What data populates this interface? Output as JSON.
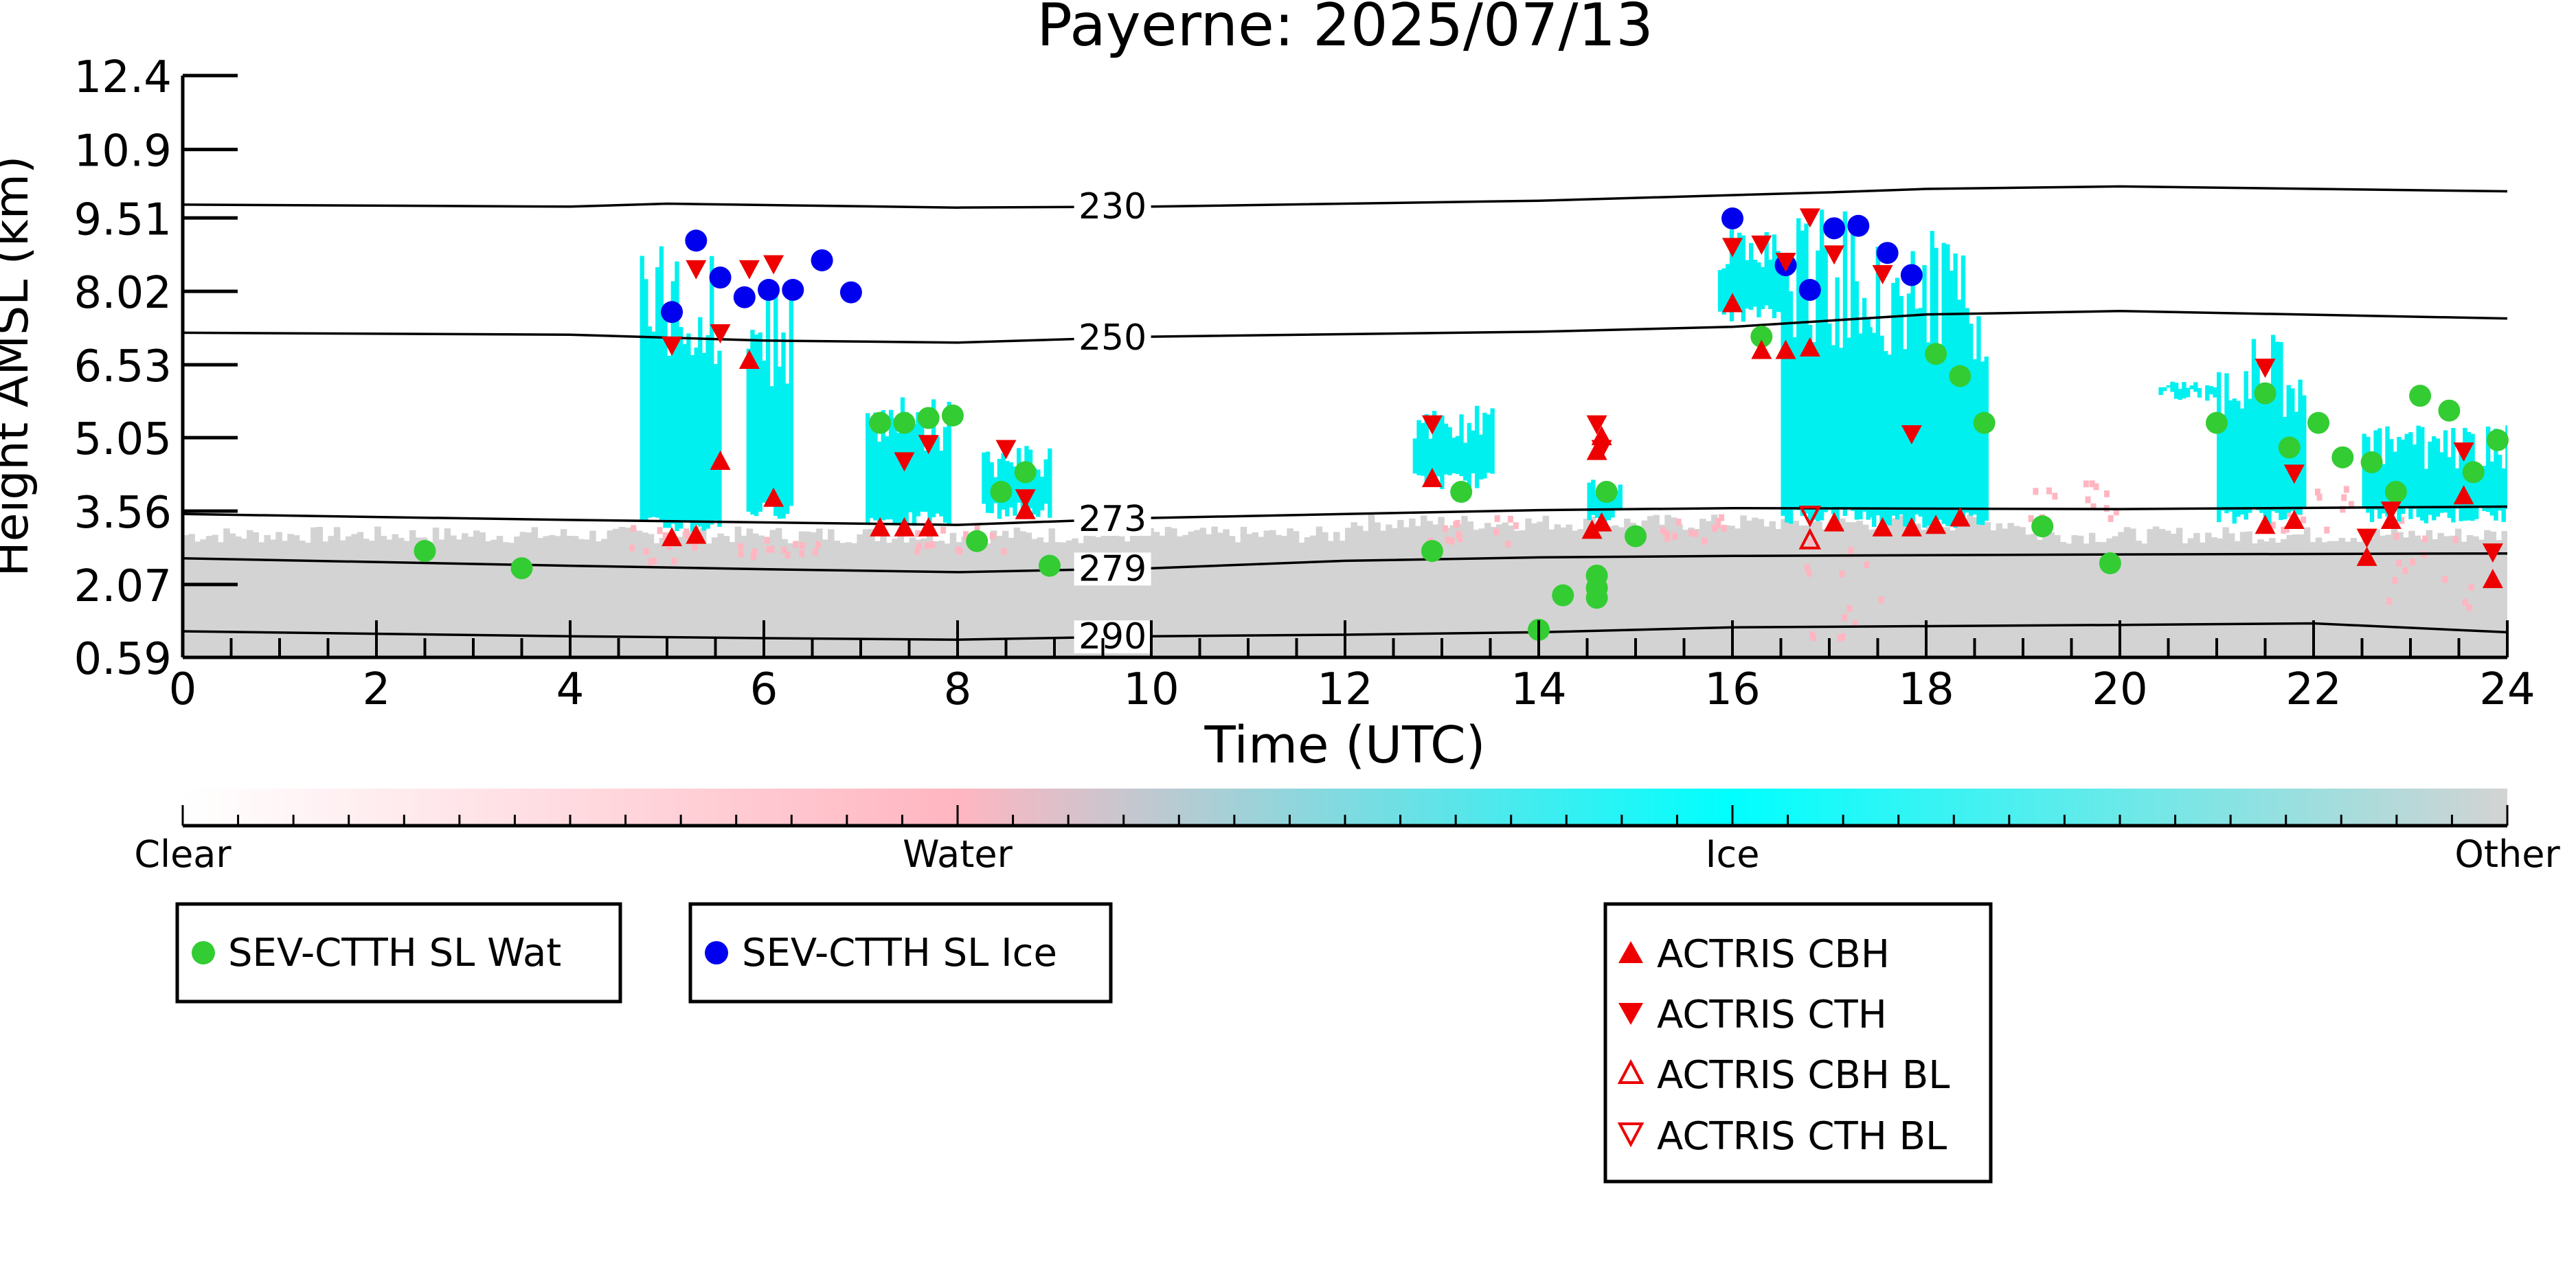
{
  "chart_data": {
    "type": "scatter",
    "title": "Payerne: 2025/07/13",
    "xlabel": "Time (UTC)",
    "ylabel": "Height AMSL (km)",
    "xlim": [
      0,
      24
    ],
    "ylim": [
      0.59,
      12.4
    ],
    "xticks": [
      0,
      2,
      4,
      6,
      8,
      10,
      12,
      14,
      16,
      18,
      20,
      22,
      24
    ],
    "xtick_labels": [
      "0",
      "2",
      "4",
      "6",
      "8",
      "10",
      "12",
      "14",
      "16",
      "18",
      "20",
      "22",
      "24"
    ],
    "yticks": [
      0.59,
      2.07,
      3.56,
      5.05,
      6.53,
      8.02,
      9.51,
      10.9,
      12.4
    ],
    "ytick_labels": [
      "0.59",
      "2.07",
      "3.56",
      "5.05",
      "6.53",
      "8.02",
      "9.51",
      "10.9",
      "12.4"
    ],
    "grid": false,
    "colorbar": {
      "labels": [
        "Clear",
        "Water",
        "Ice",
        "Other"
      ],
      "colors": [
        "#ffffff",
        "#ffb6c1",
        "#00ffff",
        "#d3d3d3"
      ]
    },
    "isotherms": [
      {
        "label": "230",
        "points": [
          [
            0,
            9.78
          ],
          [
            4,
            9.74
          ],
          [
            5,
            9.8
          ],
          [
            8,
            9.72
          ],
          [
            10,
            9.74
          ],
          [
            14,
            9.86
          ],
          [
            17,
            10.03
          ],
          [
            18,
            10.1
          ],
          [
            20,
            10.15
          ],
          [
            24,
            10.05
          ]
        ]
      },
      {
        "label": "250",
        "points": [
          [
            0,
            7.18
          ],
          [
            4,
            7.14
          ],
          [
            6,
            7.02
          ],
          [
            8,
            6.98
          ],
          [
            10,
            7.1
          ],
          [
            14,
            7.2
          ],
          [
            16,
            7.3
          ],
          [
            18,
            7.55
          ],
          [
            20,
            7.62
          ],
          [
            24,
            7.47
          ]
        ]
      },
      {
        "label": "273",
        "points": [
          [
            0,
            3.5
          ],
          [
            4,
            3.38
          ],
          [
            6,
            3.33
          ],
          [
            8,
            3.28
          ],
          [
            10,
            3.42
          ],
          [
            12,
            3.5
          ],
          [
            14,
            3.58
          ],
          [
            16,
            3.62
          ],
          [
            20,
            3.6
          ],
          [
            24,
            3.65
          ]
        ]
      },
      {
        "label": "279",
        "points": [
          [
            0,
            2.6
          ],
          [
            4,
            2.45
          ],
          [
            6,
            2.38
          ],
          [
            8,
            2.32
          ],
          [
            10,
            2.4
          ],
          [
            12,
            2.55
          ],
          [
            14,
            2.62
          ],
          [
            16,
            2.65
          ],
          [
            20,
            2.68
          ],
          [
            24,
            2.7
          ]
        ]
      },
      {
        "label": "290",
        "points": [
          [
            0,
            1.12
          ],
          [
            4,
            1.02
          ],
          [
            6,
            0.98
          ],
          [
            8,
            0.95
          ],
          [
            10,
            1.02
          ],
          [
            12,
            1.05
          ],
          [
            14,
            1.1
          ],
          [
            16,
            1.2
          ],
          [
            20,
            1.25
          ],
          [
            22,
            1.28
          ],
          [
            24,
            1.1
          ]
        ]
      }
    ],
    "series": [
      {
        "name": "SEV-CTTH SL Wat",
        "marker": "circle",
        "color": "#33cc33",
        "points": [
          [
            2.5,
            2.75
          ],
          [
            3.5,
            2.4
          ],
          [
            7.2,
            5.35
          ],
          [
            7.45,
            5.35
          ],
          [
            7.7,
            5.45
          ],
          [
            7.95,
            5.5
          ],
          [
            8.2,
            2.95
          ],
          [
            8.45,
            3.95
          ],
          [
            8.7,
            4.35
          ],
          [
            8.95,
            2.45
          ],
          [
            12.9,
            2.75
          ],
          [
            13.2,
            3.95
          ],
          [
            14.0,
            1.15
          ],
          [
            14.25,
            1.85
          ],
          [
            14.6,
            1.8
          ],
          [
            14.6,
            2.0
          ],
          [
            14.6,
            2.25
          ],
          [
            14.7,
            3.95
          ],
          [
            15.0,
            3.05
          ],
          [
            16.3,
            7.1
          ],
          [
            18.1,
            6.75
          ],
          [
            18.35,
            6.3
          ],
          [
            18.6,
            5.35
          ],
          [
            19.2,
            3.25
          ],
          [
            19.9,
            2.5
          ],
          [
            21.0,
            5.35
          ],
          [
            21.5,
            5.95
          ],
          [
            21.75,
            4.85
          ],
          [
            22.05,
            5.35
          ],
          [
            22.3,
            4.65
          ],
          [
            22.6,
            4.55
          ],
          [
            22.85,
            3.95
          ],
          [
            23.1,
            5.9
          ],
          [
            23.4,
            5.6
          ],
          [
            23.65,
            4.35
          ],
          [
            23.9,
            5.0
          ]
        ]
      },
      {
        "name": "SEV-CTTH SL Ice",
        "marker": "circle",
        "color": "#0000ee",
        "points": [
          [
            5.05,
            7.6
          ],
          [
            5.3,
            9.05
          ],
          [
            5.55,
            8.3
          ],
          [
            5.8,
            7.9
          ],
          [
            6.05,
            8.05
          ],
          [
            6.3,
            8.05
          ],
          [
            6.6,
            8.65
          ],
          [
            6.9,
            8.0
          ],
          [
            16.0,
            9.5
          ],
          [
            16.55,
            8.55
          ],
          [
            16.8,
            8.05
          ],
          [
            17.05,
            9.3
          ],
          [
            17.3,
            9.35
          ],
          [
            17.6,
            8.8
          ],
          [
            17.85,
            8.35
          ]
        ]
      },
      {
        "name": "ACTRIS CBH",
        "marker": "triangle-up",
        "color": "#ee0000",
        "points": [
          [
            5.05,
            3.0
          ],
          [
            5.3,
            3.05
          ],
          [
            5.55,
            4.55
          ],
          [
            5.85,
            6.6
          ],
          [
            6.1,
            3.8
          ],
          [
            7.2,
            3.2
          ],
          [
            7.45,
            3.2
          ],
          [
            7.7,
            3.2
          ],
          [
            8.7,
            3.55
          ],
          [
            12.9,
            4.2
          ],
          [
            14.55,
            3.15
          ],
          [
            14.65,
            3.3
          ],
          [
            14.6,
            4.75
          ],
          [
            14.65,
            5.05
          ],
          [
            16.0,
            7.75
          ],
          [
            16.3,
            6.8
          ],
          [
            16.55,
            6.8
          ],
          [
            16.8,
            6.85
          ],
          [
            17.05,
            3.3
          ],
          [
            17.55,
            3.2
          ],
          [
            17.85,
            3.2
          ],
          [
            18.1,
            3.25
          ],
          [
            18.35,
            3.4
          ],
          [
            21.5,
            3.25
          ],
          [
            21.8,
            3.35
          ],
          [
            22.55,
            2.6
          ],
          [
            22.8,
            3.35
          ],
          [
            23.55,
            3.85
          ],
          [
            23.85,
            2.15
          ]
        ]
      },
      {
        "name": "ACTRIS CTH",
        "marker": "triangle-down",
        "color": "#ee0000",
        "points": [
          [
            5.05,
            6.95
          ],
          [
            5.3,
            8.5
          ],
          [
            5.55,
            7.2
          ],
          [
            5.85,
            8.5
          ],
          [
            6.1,
            8.6
          ],
          [
            7.45,
            4.6
          ],
          [
            7.7,
            4.95
          ],
          [
            8.5,
            4.85
          ],
          [
            8.7,
            3.85
          ],
          [
            12.9,
            5.35
          ],
          [
            14.6,
            5.35
          ],
          [
            14.65,
            4.85
          ],
          [
            16.0,
            8.95
          ],
          [
            16.3,
            9.0
          ],
          [
            16.55,
            8.65
          ],
          [
            16.8,
            9.55
          ],
          [
            17.05,
            8.8
          ],
          [
            17.55,
            8.4
          ],
          [
            17.85,
            5.15
          ],
          [
            21.5,
            6.5
          ],
          [
            21.8,
            4.35
          ],
          [
            22.55,
            3.05
          ],
          [
            22.8,
            3.6
          ],
          [
            23.55,
            4.8
          ],
          [
            23.85,
            2.75
          ]
        ]
      },
      {
        "name": "ACTRIS CBH BL",
        "marker": "triangle-up-open",
        "color": "#ee0000",
        "points": [
          [
            16.8,
            2.95
          ]
        ]
      },
      {
        "name": "ACTRIS CTH BL",
        "marker": "triangle-down-open",
        "color": "#ee0000",
        "points": [
          [
            16.8,
            3.5
          ]
        ]
      }
    ],
    "legends": [
      {
        "placement": "below-left",
        "entries": [
          "SEV-CTTH SL Wat"
        ]
      },
      {
        "placement": "below-left-center",
        "entries": [
          "SEV-CTTH SL Ice"
        ]
      },
      {
        "placement": "below-right-center",
        "entries": [
          "ACTRIS CBH",
          "ACTRIS CTH",
          "ACTRIS CBH BL",
          "ACTRIS CTH BL"
        ]
      }
    ]
  }
}
